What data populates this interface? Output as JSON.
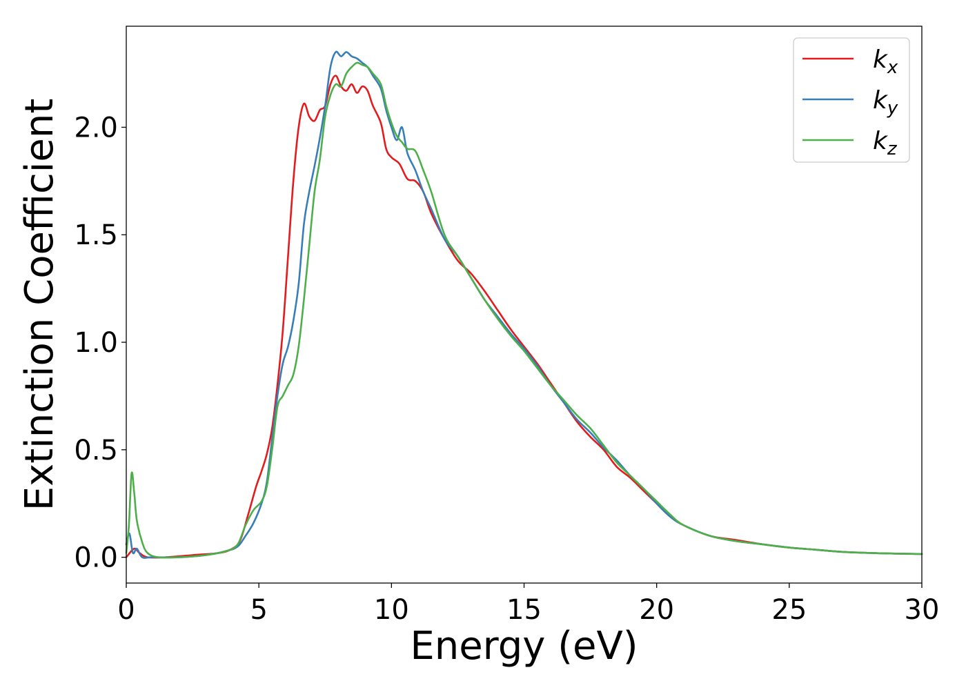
{
  "chart_data": {
    "type": "line",
    "title": "",
    "xlabel": "Energy (eV)",
    "ylabel": "Extinction Coefficient",
    "xlim": [
      0,
      30
    ],
    "ylim": [
      -0.12,
      2.47
    ],
    "xticks": [
      0,
      5,
      10,
      15,
      20,
      25,
      30
    ],
    "xtick_labels": [
      "0",
      "5",
      "10",
      "15",
      "20",
      "25",
      "30"
    ],
    "yticks": [
      0.0,
      0.5,
      1.0,
      1.5,
      2.0
    ],
    "ytick_labels": [
      "0.0",
      "0.5",
      "1.0",
      "1.5",
      "2.0"
    ],
    "grid": false,
    "legend_position": "top-right",
    "series": [
      {
        "name": "k_x",
        "label_main": "k",
        "label_sub": "x",
        "color": "#e41a1c",
        "points": [
          [
            0,
            0.0
          ],
          [
            0.3,
            0.04
          ],
          [
            0.5,
            0.02
          ],
          [
            0.8,
            0.0
          ],
          [
            1.5,
            0.0
          ],
          [
            2.5,
            0.01
          ],
          [
            3.5,
            0.02
          ],
          [
            4.0,
            0.04
          ],
          [
            4.3,
            0.08
          ],
          [
            4.6,
            0.2
          ],
          [
            4.9,
            0.33
          ],
          [
            5.1,
            0.4
          ],
          [
            5.3,
            0.48
          ],
          [
            5.5,
            0.6
          ],
          [
            5.7,
            0.8
          ],
          [
            5.9,
            1.05
          ],
          [
            6.1,
            1.4
          ],
          [
            6.3,
            1.75
          ],
          [
            6.5,
            2.0
          ],
          [
            6.7,
            2.11
          ],
          [
            6.9,
            2.05
          ],
          [
            7.1,
            2.03
          ],
          [
            7.3,
            2.08
          ],
          [
            7.5,
            2.1
          ],
          [
            7.7,
            2.2
          ],
          [
            7.9,
            2.24
          ],
          [
            8.1,
            2.19
          ],
          [
            8.3,
            2.17
          ],
          [
            8.5,
            2.2
          ],
          [
            8.7,
            2.16
          ],
          [
            8.9,
            2.19
          ],
          [
            9.1,
            2.17
          ],
          [
            9.3,
            2.1
          ],
          [
            9.6,
            2.02
          ],
          [
            9.8,
            1.9
          ],
          [
            10.0,
            1.86
          ],
          [
            10.3,
            1.83
          ],
          [
            10.6,
            1.76
          ],
          [
            10.9,
            1.75
          ],
          [
            11.2,
            1.7
          ],
          [
            11.5,
            1.6
          ],
          [
            12.0,
            1.48
          ],
          [
            12.5,
            1.38
          ],
          [
            13.0,
            1.32
          ],
          [
            13.5,
            1.24
          ],
          [
            14.0,
            1.15
          ],
          [
            14.5,
            1.06
          ],
          [
            15.0,
            0.98
          ],
          [
            15.5,
            0.9
          ],
          [
            16.0,
            0.81
          ],
          [
            16.5,
            0.72
          ],
          [
            17.0,
            0.63
          ],
          [
            17.5,
            0.56
          ],
          [
            18.0,
            0.5
          ],
          [
            18.5,
            0.42
          ],
          [
            19.0,
            0.37
          ],
          [
            19.5,
            0.31
          ],
          [
            20.0,
            0.25
          ],
          [
            20.5,
            0.19
          ],
          [
            21.0,
            0.15
          ],
          [
            22.0,
            0.1
          ],
          [
            23.0,
            0.08
          ],
          [
            24.0,
            0.06
          ],
          [
            25.0,
            0.045
          ],
          [
            26.0,
            0.035
          ],
          [
            27.0,
            0.025
          ],
          [
            28.0,
            0.02
          ],
          [
            29.0,
            0.017
          ],
          [
            30.0,
            0.015
          ]
        ]
      },
      {
        "name": "k_y",
        "label_main": "k",
        "label_sub": "y",
        "color": "#377eb8",
        "points": [
          [
            0,
            0.06
          ],
          [
            0.12,
            0.11
          ],
          [
            0.25,
            0.02
          ],
          [
            0.4,
            0.04
          ],
          [
            0.6,
            0.0
          ],
          [
            1.0,
            0.0
          ],
          [
            2.0,
            0.0
          ],
          [
            3.0,
            0.01
          ],
          [
            3.8,
            0.03
          ],
          [
            4.2,
            0.05
          ],
          [
            4.5,
            0.1
          ],
          [
            4.8,
            0.16
          ],
          [
            5.1,
            0.25
          ],
          [
            5.3,
            0.35
          ],
          [
            5.5,
            0.55
          ],
          [
            5.7,
            0.75
          ],
          [
            5.9,
            0.9
          ],
          [
            6.1,
            0.98
          ],
          [
            6.3,
            1.1
          ],
          [
            6.5,
            1.27
          ],
          [
            6.7,
            1.55
          ],
          [
            6.9,
            1.7
          ],
          [
            7.1,
            1.82
          ],
          [
            7.3,
            1.95
          ],
          [
            7.5,
            2.1
          ],
          [
            7.7,
            2.28
          ],
          [
            7.9,
            2.35
          ],
          [
            8.1,
            2.33
          ],
          [
            8.3,
            2.35
          ],
          [
            8.5,
            2.33
          ],
          [
            8.7,
            2.32
          ],
          [
            8.9,
            2.3
          ],
          [
            9.1,
            2.28
          ],
          [
            9.3,
            2.24
          ],
          [
            9.6,
            2.18
          ],
          [
            9.8,
            2.08
          ],
          [
            10.0,
            2.0
          ],
          [
            10.2,
            1.94
          ],
          [
            10.4,
            2.0
          ],
          [
            10.6,
            1.88
          ],
          [
            10.9,
            1.8
          ],
          [
            11.2,
            1.7
          ],
          [
            11.5,
            1.62
          ],
          [
            12.0,
            1.48
          ],
          [
            12.5,
            1.4
          ],
          [
            13.0,
            1.3
          ],
          [
            13.5,
            1.2
          ],
          [
            14.0,
            1.12
          ],
          [
            14.5,
            1.04
          ],
          [
            15.0,
            0.97
          ],
          [
            15.5,
            0.89
          ],
          [
            16.0,
            0.8
          ],
          [
            16.5,
            0.72
          ],
          [
            17.0,
            0.64
          ],
          [
            17.5,
            0.58
          ],
          [
            18.0,
            0.51
          ],
          [
            18.5,
            0.45
          ],
          [
            19.0,
            0.38
          ],
          [
            19.5,
            0.32
          ],
          [
            20.0,
            0.25
          ],
          [
            20.5,
            0.19
          ],
          [
            21.0,
            0.15
          ],
          [
            22.0,
            0.1
          ],
          [
            23.0,
            0.075
          ],
          [
            24.0,
            0.06
          ],
          [
            25.0,
            0.045
          ],
          [
            26.0,
            0.035
          ],
          [
            27.0,
            0.025
          ],
          [
            28.0,
            0.02
          ],
          [
            29.0,
            0.017
          ],
          [
            30.0,
            0.015
          ]
        ]
      },
      {
        "name": "k_z",
        "label_main": "k",
        "label_sub": "z",
        "color": "#4daf4a",
        "points": [
          [
            0,
            0.02
          ],
          [
            0.1,
            0.15
          ],
          [
            0.2,
            0.39
          ],
          [
            0.3,
            0.3
          ],
          [
            0.4,
            0.17
          ],
          [
            0.6,
            0.07
          ],
          [
            0.8,
            0.02
          ],
          [
            1.2,
            0.0
          ],
          [
            2.0,
            0.0
          ],
          [
            3.0,
            0.01
          ],
          [
            3.8,
            0.03
          ],
          [
            4.2,
            0.06
          ],
          [
            4.5,
            0.15
          ],
          [
            4.8,
            0.22
          ],
          [
            5.1,
            0.26
          ],
          [
            5.3,
            0.33
          ],
          [
            5.5,
            0.5
          ],
          [
            5.7,
            0.7
          ],
          [
            5.9,
            0.75
          ],
          [
            6.1,
            0.8
          ],
          [
            6.3,
            0.85
          ],
          [
            6.5,
            0.98
          ],
          [
            6.7,
            1.2
          ],
          [
            6.9,
            1.45
          ],
          [
            7.1,
            1.7
          ],
          [
            7.3,
            1.85
          ],
          [
            7.5,
            2.05
          ],
          [
            7.7,
            2.15
          ],
          [
            7.9,
            2.2
          ],
          [
            8.1,
            2.19
          ],
          [
            8.3,
            2.25
          ],
          [
            8.5,
            2.28
          ],
          [
            8.7,
            2.3
          ],
          [
            8.9,
            2.29
          ],
          [
            9.1,
            2.28
          ],
          [
            9.3,
            2.25
          ],
          [
            9.6,
            2.2
          ],
          [
            9.8,
            2.1
          ],
          [
            10.0,
            2.02
          ],
          [
            10.2,
            1.96
          ],
          [
            10.4,
            1.93
          ],
          [
            10.6,
            1.9
          ],
          [
            10.9,
            1.89
          ],
          [
            11.2,
            1.8
          ],
          [
            11.5,
            1.7
          ],
          [
            12.0,
            1.5
          ],
          [
            12.5,
            1.4
          ],
          [
            13.0,
            1.3
          ],
          [
            13.5,
            1.2
          ],
          [
            14.0,
            1.11
          ],
          [
            14.5,
            1.03
          ],
          [
            15.0,
            0.96
          ],
          [
            15.5,
            0.88
          ],
          [
            16.0,
            0.8
          ],
          [
            16.5,
            0.73
          ],
          [
            17.0,
            0.66
          ],
          [
            17.5,
            0.6
          ],
          [
            18.0,
            0.52
          ],
          [
            18.5,
            0.44
          ],
          [
            19.0,
            0.38
          ],
          [
            19.5,
            0.32
          ],
          [
            20.0,
            0.26
          ],
          [
            20.5,
            0.2
          ],
          [
            21.0,
            0.15
          ],
          [
            22.0,
            0.1
          ],
          [
            23.0,
            0.075
          ],
          [
            24.0,
            0.06
          ],
          [
            25.0,
            0.045
          ],
          [
            26.0,
            0.035
          ],
          [
            27.0,
            0.025
          ],
          [
            28.0,
            0.02
          ],
          [
            29.0,
            0.017
          ],
          [
            30.0,
            0.015
          ]
        ]
      }
    ]
  }
}
